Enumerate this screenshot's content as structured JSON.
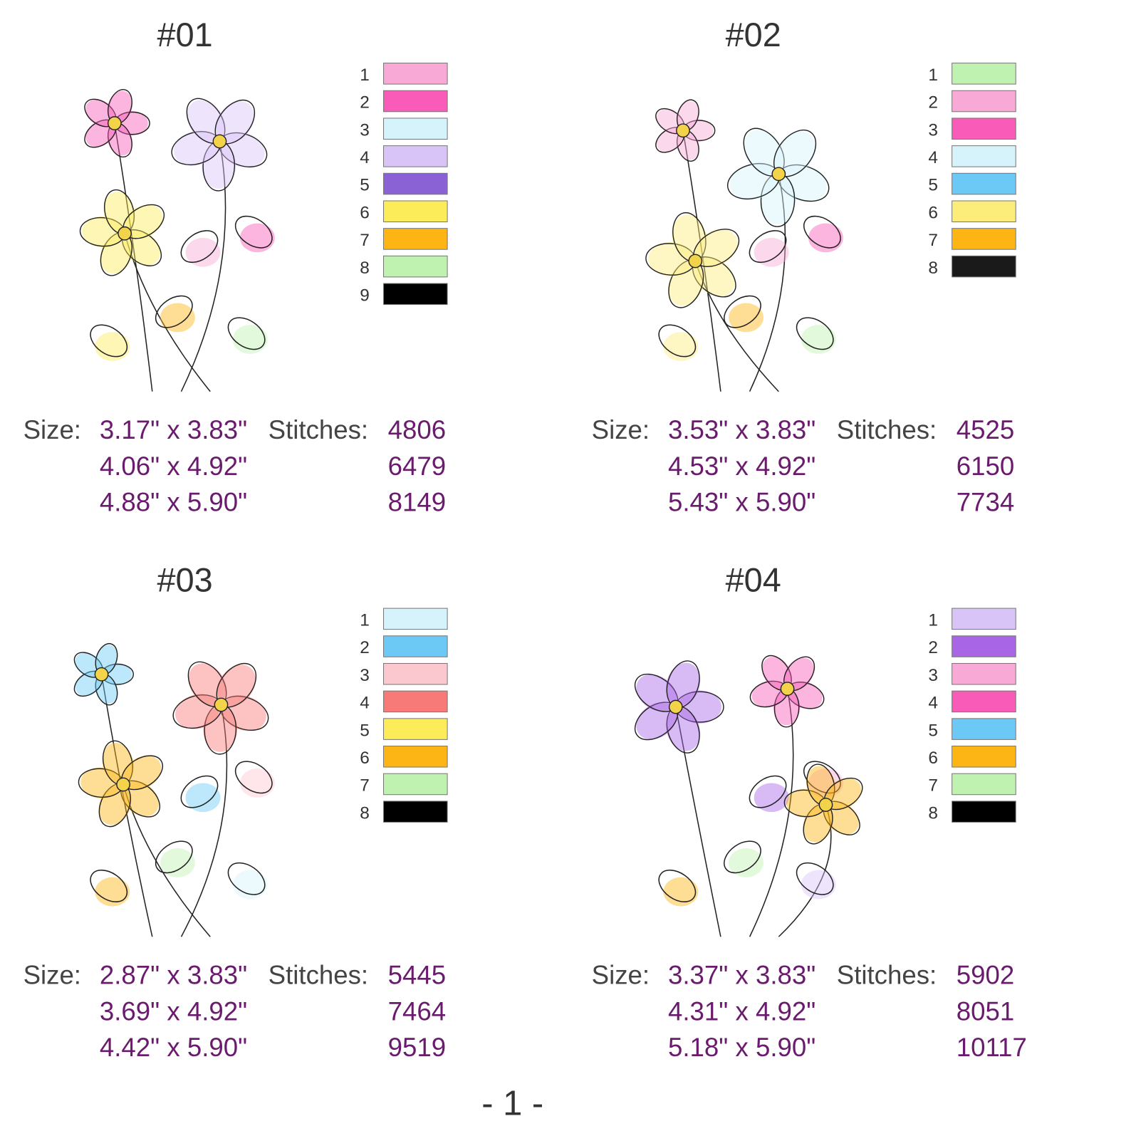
{
  "designs": [
    {
      "title": "#01",
      "colors": [
        {
          "number": "1",
          "color": "#f9a9d6"
        },
        {
          "number": "2",
          "color": "#f85bb8"
        },
        {
          "number": "3",
          "color": "#d6f3fb"
        },
        {
          "number": "4",
          "color": "#d9c4f8"
        },
        {
          "number": "5",
          "color": "#8b62d6"
        },
        {
          "number": "6",
          "color": "#fcec5a"
        },
        {
          "number": "7",
          "color": "#fdb515"
        },
        {
          "number": "8",
          "color": "#bff2b0"
        },
        {
          "number": "9",
          "color": "#000000"
        }
      ],
      "size_label": "Size:",
      "stitches_label": "Stitches:",
      "sizes": [
        "3.17\" x 3.83\"",
        "4.06\" x 4.92\"",
        "4.88\" x 5.90\""
      ],
      "stitches": [
        4806,
        6479,
        8149
      ]
    },
    {
      "title": "#02",
      "colors": [
        {
          "number": "1",
          "color": "#bff2b0"
        },
        {
          "number": "2",
          "color": "#f9a9d6"
        },
        {
          "number": "3",
          "color": "#f85bb8"
        },
        {
          "number": "4",
          "color": "#d6f3fb"
        },
        {
          "number": "5",
          "color": "#6cc9f5"
        },
        {
          "number": "6",
          "color": "#fcec7a"
        },
        {
          "number": "7",
          "color": "#fdb515"
        },
        {
          "number": "8",
          "color": "#1a1a1a"
        }
      ],
      "size_label": "Size:",
      "stitches_label": "Stitches:",
      "sizes": [
        "3.53\" x 3.83\"",
        "4.53\" x 4.92\"",
        "5.43\" x 5.90\""
      ],
      "stitches": [
        4525,
        6150,
        7734
      ]
    },
    {
      "title": "#03",
      "colors": [
        {
          "number": "1",
          "color": "#d6f3fb"
        },
        {
          "number": "2",
          "color": "#6cc9f5"
        },
        {
          "number": "3",
          "color": "#fcc8d0"
        },
        {
          "number": "4",
          "color": "#f87a78"
        },
        {
          "number": "5",
          "color": "#fcec5a"
        },
        {
          "number": "6",
          "color": "#fdb515"
        },
        {
          "number": "7",
          "color": "#bff2b0"
        },
        {
          "number": "8",
          "color": "#000000"
        }
      ],
      "size_label": "Size:",
      "stitches_label": "Stitches:",
      "sizes": [
        "2.87\" x 3.83\"",
        "3.69\" x 4.92\"",
        "4.42\" x 5.90\""
      ],
      "stitches": [
        5445,
        7464,
        9519
      ]
    },
    {
      "title": "#04",
      "colors": [
        {
          "number": "1",
          "color": "#d9c4f8"
        },
        {
          "number": "2",
          "color": "#a865e6"
        },
        {
          "number": "3",
          "color": "#f9a9d6"
        },
        {
          "number": "4",
          "color": "#f85bb8"
        },
        {
          "number": "5",
          "color": "#6cc9f5"
        },
        {
          "number": "6",
          "color": "#fdb515"
        },
        {
          "number": "7",
          "color": "#bff2b0"
        },
        {
          "number": "8",
          "color": "#000000"
        }
      ],
      "size_label": "Size:",
      "stitches_label": "Stitches:",
      "sizes": [
        "3.37\" x 3.83\"",
        "4.31\" x 4.92\"",
        "5.18\" x 5.90\""
      ],
      "stitches": [
        5902,
        8051,
        10117
      ]
    }
  ],
  "page_number": "- 1 -"
}
